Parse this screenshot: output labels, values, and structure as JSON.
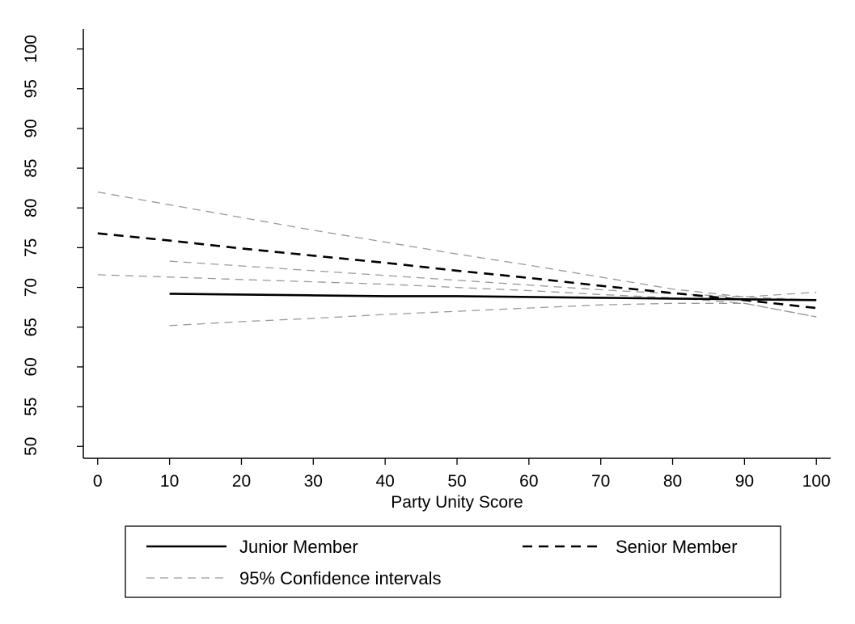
{
  "chart_data": {
    "type": "line",
    "title": "",
    "xlabel": "Party Unity Score",
    "ylabel": "",
    "xlim": [
      -2,
      102
    ],
    "ylim": [
      48.5,
      102.5
    ],
    "x_ticks": [
      "0",
      "10",
      "20",
      "30",
      "40",
      "50",
      "60",
      "70",
      "80",
      "90",
      "100"
    ],
    "y_ticks": [
      "50",
      "55",
      "60",
      "65",
      "70",
      "75",
      "80",
      "85",
      "90",
      "95",
      "100"
    ],
    "grid": false,
    "legend": {
      "placement": "bottom",
      "entries": [
        "Junior Member",
        "Senior Member",
        "95% Confidence intervals"
      ]
    },
    "series": [
      {
        "name": "Junior Member",
        "style": "solid",
        "color": "#000000",
        "x": [
          10,
          20,
          30,
          40,
          50,
          60,
          70,
          80,
          90,
          100
        ],
        "y": [
          69.2,
          69.1,
          69.0,
          68.9,
          68.9,
          68.8,
          68.7,
          68.6,
          68.5,
          68.4
        ]
      },
      {
        "name": "Senior Member",
        "style": "dashed",
        "color": "#000000",
        "x": [
          0,
          10,
          20,
          30,
          40,
          50,
          60,
          70,
          80,
          90,
          100
        ],
        "y": [
          76.8,
          75.9,
          74.9,
          74.0,
          73.1,
          72.1,
          71.2,
          70.2,
          69.3,
          68.4,
          67.4
        ]
      },
      {
        "name": "95% Confidence intervals",
        "style": "ci",
        "color": "#999999",
        "x": [
          10,
          20,
          30,
          40,
          50,
          60,
          70,
          80,
          90,
          100
        ],
        "y": [
          73.3,
          72.7,
          72.1,
          71.5,
          70.9,
          70.3,
          69.7,
          69.2,
          68.8,
          69.4
        ]
      },
      {
        "style": "ci",
        "color": "#999999",
        "x": [
          10,
          20,
          30,
          40,
          50,
          60,
          70,
          80,
          90,
          100
        ],
        "y": [
          65.2,
          65.7,
          66.1,
          66.6,
          67.0,
          67.4,
          67.8,
          68.0,
          68.0,
          66.3
        ]
      },
      {
        "style": "ci",
        "color": "#999999",
        "x": [
          0,
          10,
          20,
          30,
          40,
          50,
          60,
          70,
          80,
          90,
          100
        ],
        "y": [
          82.0,
          80.4,
          78.8,
          77.2,
          75.7,
          74.2,
          72.8,
          71.3,
          69.8,
          68.8,
          68.4
        ]
      },
      {
        "style": "ci",
        "color": "#999999",
        "x": [
          0,
          10,
          20,
          30,
          40,
          50,
          60,
          70,
          80,
          90,
          100
        ],
        "y": [
          71.6,
          71.3,
          71.0,
          70.7,
          70.4,
          70.0,
          69.6,
          69.1,
          68.7,
          68.0,
          66.3
        ]
      }
    ]
  }
}
